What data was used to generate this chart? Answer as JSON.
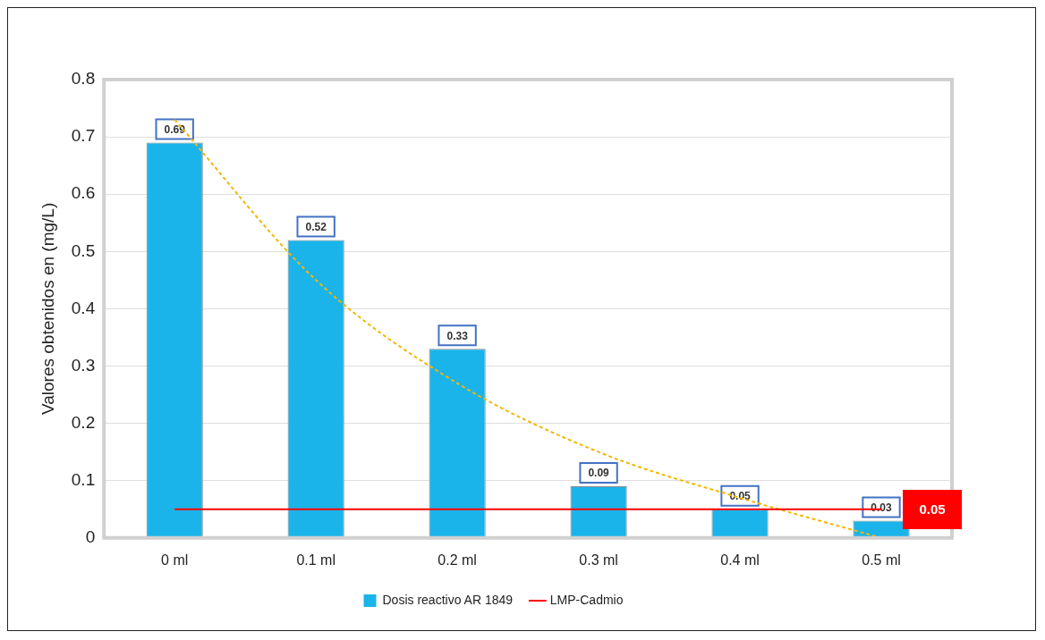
{
  "chart_data": {
    "type": "bar",
    "ylabel": "Valores obtenidos en (mg/L)",
    "categories": [
      "0 ml",
      "0.1 ml",
      "0.2 ml",
      "0.3 ml",
      "0.4 ml",
      "0.5 ml"
    ],
    "series": [
      {
        "name": "Dosis reactivo AR 1849",
        "color": "#1ab4ea",
        "values": [
          0.69,
          0.52,
          0.33,
          0.09,
          0.05,
          0.03
        ],
        "value_labels": [
          "0.69",
          "0.52",
          "0.33",
          "0.09",
          "0.05",
          "0.03"
        ]
      },
      {
        "type": "line",
        "name": "LMP-Cadmio",
        "color": "#ff0000",
        "values": [
          0.05,
          0.05,
          0.05,
          0.05,
          0.05,
          0.05
        ],
        "value_labels": [
          null,
          null,
          null,
          null,
          null,
          "0.05"
        ],
        "line_style": "solid"
      },
      {
        "type": "line",
        "color": "#f2b705",
        "values": [
          0.73,
          0.45,
          0.27,
          0.15,
          0.07,
          0.0
        ],
        "line_style": "dashed"
      }
    ],
    "ylim": [
      0,
      0.8
    ],
    "yticks": [
      0,
      0.1,
      0.2,
      0.3,
      0.4,
      0.5,
      0.6,
      0.7,
      0.8
    ],
    "grid": "y",
    "legend": "bottom",
    "marker": "none"
  }
}
